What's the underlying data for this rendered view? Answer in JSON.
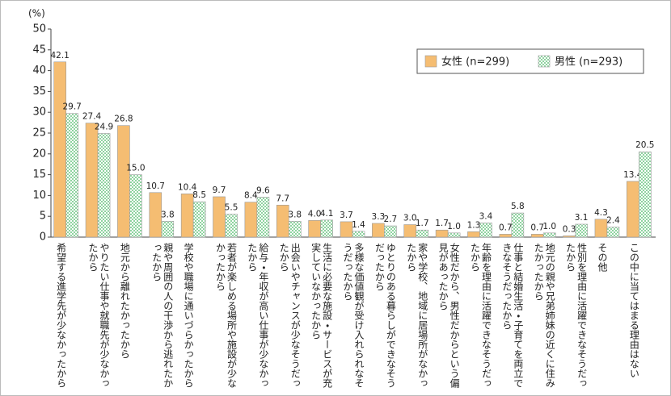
{
  "chart_data": {
    "type": "bar",
    "y_unit": "(%)",
    "categories": [
      "希望する進学先が少なかったから",
      "やりたい仕事や就職先が少なかったから",
      "地元から離れたかったから",
      "親や周囲の人の干渉から逃れたかったから",
      "学校や職場に通いづらかったから",
      "若者が楽しめる場所や施設が少なかったから",
      "給与・年収が高い仕事が少なかったから",
      "出会いやチャンスが少なそうだったから",
      "生活に必要な施設・サービスが充実していなかったから",
      "多様な価値観が受け入れられなそうだったから",
      "ゆとりのある暮らしができなそうだったから",
      "家や学校、地域に居場所がなかったから",
      "女性だから、男性だからという偏見があったから",
      "年齢を理由に活躍できなそうだったから",
      "仕事と結婚生活・子育てを両立できなそうだったから",
      "地元の親や兄弟姉妹の近くに住みたかったから",
      "性別を理由に活躍できなそうだったから",
      "その他",
      "この中に当てはまる理由はない"
    ],
    "series": [
      {
        "name": "女性 (n=299)",
        "color": "#f5bd72",
        "values": [
          42.1,
          27.4,
          26.8,
          10.7,
          10.4,
          9.7,
          8.4,
          7.7,
          4.0,
          3.7,
          3.3,
          3.0,
          1.7,
          1.3,
          0.7,
          0.7,
          0.3,
          4.3,
          13.4
        ],
        "value_labels": [
          "42.1",
          "27.4",
          "26.8",
          "10.7",
          "10.4",
          "9.7",
          "8.4",
          "7.7",
          "4.0",
          "3.7",
          "3.3",
          "3.0",
          "1.7",
          "1.3",
          "0.7",
          "0.7",
          "0.3",
          "4.3",
          "13.4"
        ]
      },
      {
        "name": "男性 (n=293)",
        "color": "#8fd3a0",
        "values": [
          29.7,
          24.9,
          15.0,
          3.8,
          8.5,
          5.5,
          9.6,
          3.8,
          4.1,
          1.4,
          2.7,
          1.7,
          1.0,
          3.4,
          5.8,
          1.0,
          3.1,
          2.4,
          20.5
        ],
        "value_labels": [
          "29.7",
          "24.9",
          "15.0",
          "3.8",
          "8.5",
          "5.5",
          "9.6",
          "3.8",
          "4.1",
          "1.4",
          "2.7",
          "1.7",
          "1.0",
          "3.4",
          "5.8",
          "1.0",
          "3.1",
          "2.4",
          "20.5"
        ]
      }
    ],
    "ylim": [
      0,
      50
    ],
    "yticks": [
      0,
      5,
      10,
      15,
      20,
      25,
      30,
      35,
      40,
      45,
      50
    ],
    "grid": false
  }
}
